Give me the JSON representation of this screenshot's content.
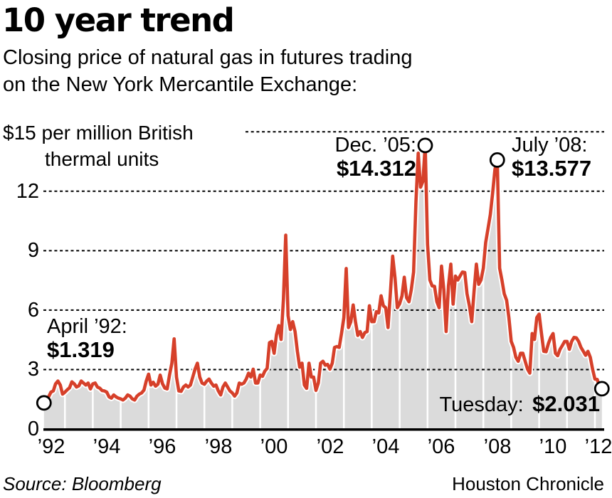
{
  "header": {
    "title": "10 year trend",
    "subtitle_lines": [
      "Closing price of natural gas in futures trading",
      "on the New York Mercantile Exchange:"
    ]
  },
  "chart_data": {
    "type": "area",
    "title": "10 year trend",
    "ylabel": "$ per million British thermal units",
    "unit_label_lines": [
      "$15 per million British",
      "thermal units"
    ],
    "grid": "dotted-horizontal",
    "y_axis": {
      "range": [
        0,
        15
      ],
      "ticks": [
        0,
        3,
        6,
        9,
        12,
        15
      ],
      "tick_labels": [
        "0",
        "3",
        "6",
        "9",
        "12"
      ]
    },
    "x_axis": {
      "range_years": [
        1992,
        2012.33
      ],
      "tick_labels": [
        "’92",
        "’94",
        "’96",
        "’98",
        "’00",
        "’02",
        "’04",
        "’06",
        "’08",
        "’10",
        "’12"
      ]
    },
    "series": {
      "name": "NYMEX natural gas closing price",
      "interval": "monthly",
      "start_year": 1992,
      "start_month": 4,
      "values": [
        1.319,
        1.45,
        1.62,
        1.86,
        1.92,
        2.28,
        2.42,
        2.22,
        1.76,
        1.86,
        1.98,
        2.08,
        2.38,
        2.28,
        2.12,
        2.18,
        2.42,
        2.32,
        2.22,
        2.32,
        2.02,
        2.28,
        2.32,
        2.12,
        2.06,
        1.94,
        1.92,
        1.86,
        1.62,
        1.56,
        1.72,
        1.62,
        1.56,
        1.52,
        1.46,
        1.56,
        1.72,
        1.66,
        1.52,
        1.46,
        1.66,
        1.76,
        1.82,
        1.96,
        2.42,
        2.77,
        2.22,
        2.36,
        2.16,
        2.26,
        2.72,
        2.28,
        2.06,
        2.02,
        2.72,
        3.32,
        4.55,
        2.62,
        1.92,
        1.9,
        2.12,
        2.22,
        2.12,
        2.22,
        2.62,
        3.02,
        3.32,
        2.62,
        2.32,
        2.26,
        2.42,
        2.52,
        2.32,
        2.16,
        2.22,
        1.92,
        1.72,
        2.12,
        2.32,
        2.12,
        1.92,
        1.82,
        1.66,
        1.82,
        2.32,
        2.26,
        2.32,
        2.52,
        2.82,
        2.62,
        3.02,
        2.32,
        2.32,
        2.72,
        2.66,
        2.92,
        3.06,
        4.36,
        4.42,
        3.82,
        4.76,
        5.22,
        4.52,
        6.56,
        9.78,
        5.72,
        5.02,
        5.42,
        4.92,
        3.92,
        3.12,
        3.32,
        2.22,
        2.05,
        3.32,
        2.62,
        2.62,
        1.95,
        2.32,
        3.32,
        3.42,
        3.22,
        3.26,
        3.02,
        3.32,
        4.12,
        4.16,
        4.12,
        4.82,
        5.62,
        8.1,
        5.12,
        5.42,
        6.26,
        5.42,
        4.72,
        4.92,
        4.62,
        4.86,
        4.92,
        6.22,
        5.42,
        5.42,
        5.92,
        5.86,
        6.72,
        6.22,
        6.12,
        5.12,
        6.82,
        8.72,
        7.62,
        6.12,
        6.32,
        6.72,
        7.66,
        6.62,
        6.42,
        7.02,
        7.92,
        11.47,
        13.92,
        12.2,
        12.5,
        14.312,
        9.32,
        7.52,
        7.22,
        7.2,
        6.42,
        6.12,
        8.22,
        7.02,
        4.92,
        7.22,
        8.32,
        6.3,
        7.72,
        7.52,
        7.72,
        7.92,
        7.9,
        6.82,
        6.22,
        5.42,
        6.92,
        8.32,
        7.3,
        7.52,
        8.12,
        9.42,
        10.1,
        10.82,
        11.92,
        13.1,
        13.577,
        8.12,
        7.52,
        6.82,
        6.5,
        5.62,
        4.42,
        4.12,
        3.62,
        3.42,
        3.82,
        3.82,
        3.42,
        3.02,
        2.82,
        4.82,
        4.52,
        5.62,
        5.8,
        4.82,
        3.92,
        3.9,
        4.32,
        4.62,
        4.82,
        3.82,
        3.7,
        4.02,
        4.22,
        4.42,
        4.42,
        4.02,
        4.42,
        4.62,
        4.6,
        4.42,
        4.12,
        3.92,
        3.72,
        3.92,
        3.62,
        3.02,
        2.52,
        2.5,
        2.12,
        2.031
      ]
    },
    "annotations": [
      {
        "id": "april92",
        "label": "April ’92:",
        "value_label": "$1.319",
        "value": 1.319,
        "month_index": 0
      },
      {
        "id": "dec05",
        "label": "Dec. ’05:",
        "value_label": "$14.312",
        "value": 14.312,
        "month_index": 164
      },
      {
        "id": "july08",
        "label": "July ’08:",
        "value_label": "$13.577",
        "value": 13.577,
        "month_index": 195
      },
      {
        "id": "tuesday",
        "label": "Tuesday:",
        "value_label": "$2.031",
        "value": 2.031,
        "month_index": 240
      }
    ],
    "colors": {
      "line": "#d6402a",
      "line_halo": "#ffffff",
      "area": "#dbdbdb",
      "grid": "#000000",
      "baseline": "#000000",
      "marker_fill": "#ffffff",
      "marker_stroke": "#000000"
    }
  },
  "footer": {
    "source": "Source: Bloomberg",
    "credit": "Houston Chronicle"
  }
}
